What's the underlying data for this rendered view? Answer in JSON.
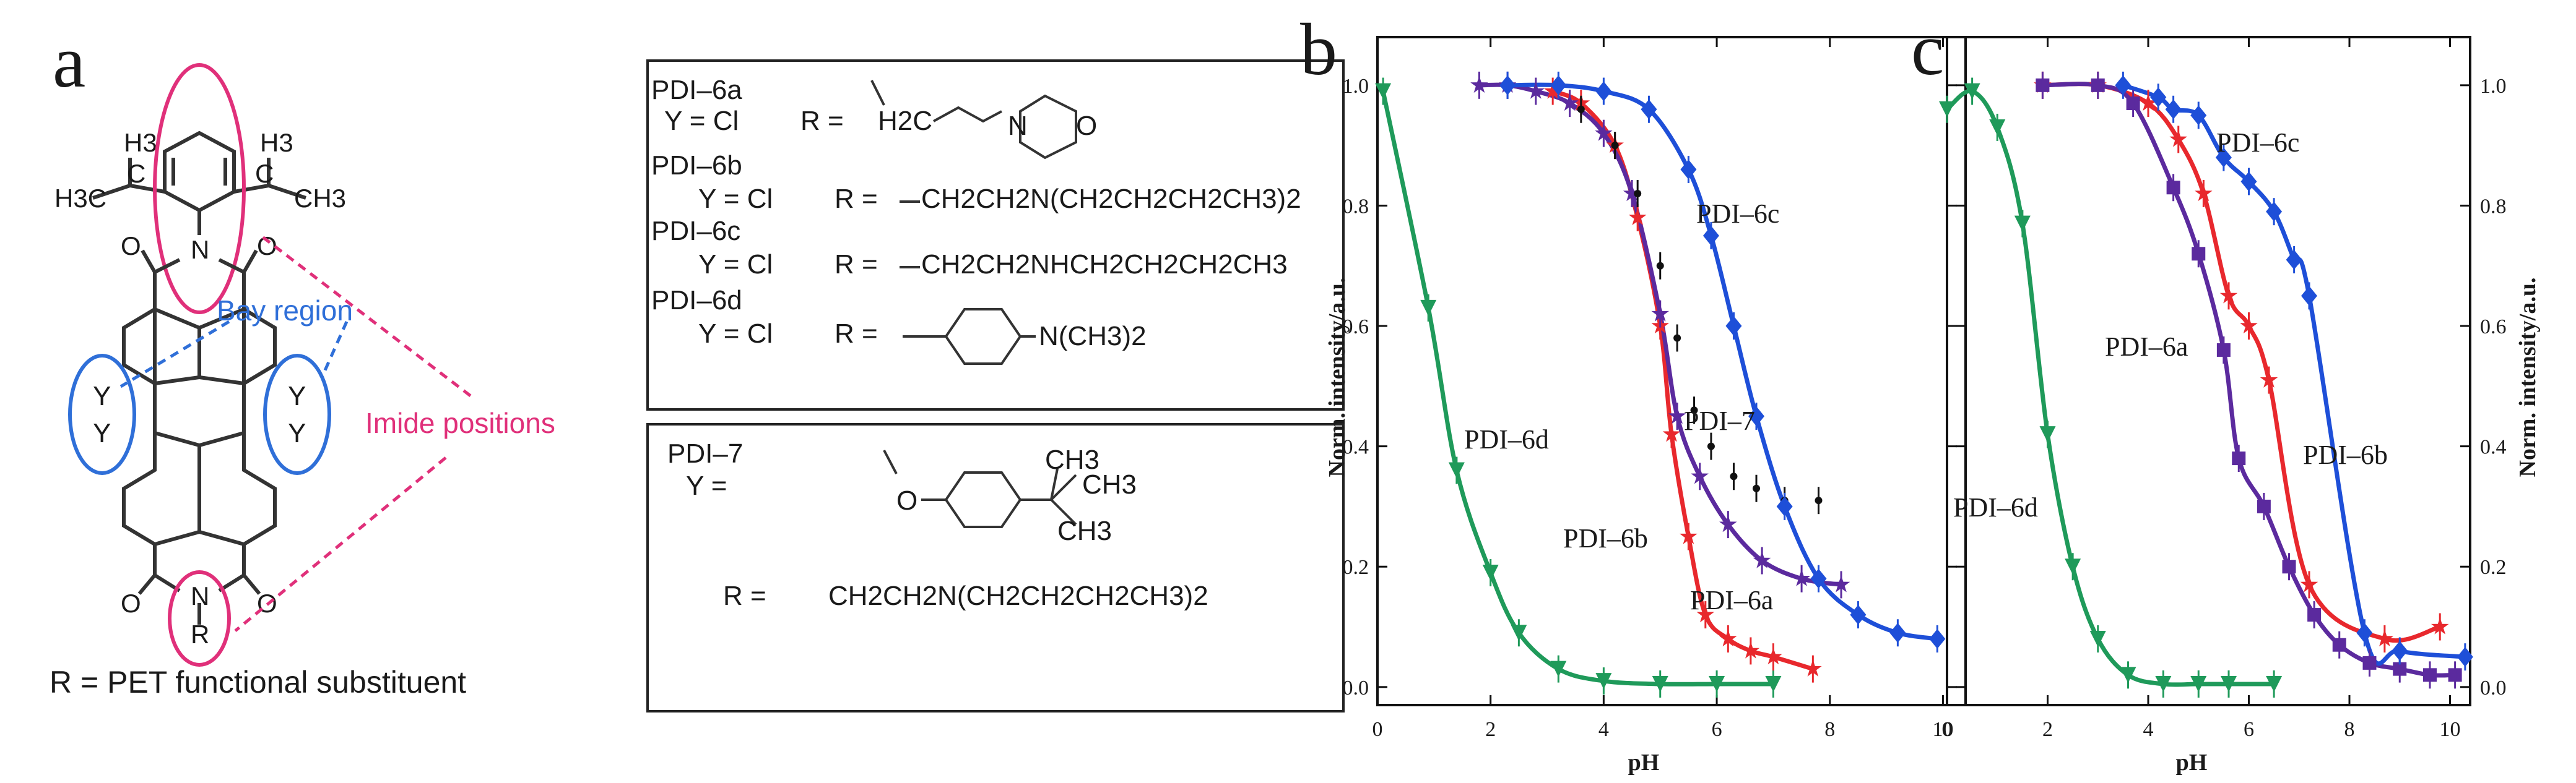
{
  "panel_a": {
    "letter": "a",
    "h3_left": "H3",
    "h3_right": "H3",
    "methyl_left": "H3C",
    "methyl_right": "CH3",
    "c_left": "C",
    "c_right": "C",
    "imide_n_top": "N",
    "imide_n_bottom": "N",
    "r_group": "R",
    "oxygen": "O",
    "bay_y": "Y",
    "bay_region_label": "Bay region",
    "imide_positions_label": "Imide positions",
    "caption": "R = PET functional substituent",
    "colors": {
      "pink": "#e0307a",
      "blue": "#2f6fd8",
      "ink": "#333333"
    }
  },
  "substituents": {
    "entries": [
      {
        "name": "PDI–6a",
        "y": "Y = Cl",
        "r_prefix": "R =",
        "r_group": "H2C—CH2—N(morpholine)"
      },
      {
        "name": "PDI–6b",
        "y": "Y = Cl",
        "r_prefix": "R =",
        "r_group": "CH2CH2N(CH2CH2CH2CH3)2"
      },
      {
        "name": "PDI–6c",
        "y": "Y = Cl",
        "r_prefix": "R =",
        "r_group": "CH2CH2NHCH2CH2CH2CH3"
      },
      {
        "name": "PDI–6d",
        "y": "Y = Cl",
        "r_prefix": "R =",
        "r_group": "N(CH3)2"
      }
    ],
    "morph_h2c": "H2C",
    "morph_n": "N",
    "morph_o": "O"
  },
  "pdi7": {
    "name": "PDI–7",
    "y_prefix": "Y =",
    "o_atom": "O",
    "ch3_a": "CH3",
    "ch3_b": "CH3",
    "ch3_c": "CH3",
    "r_prefix": "R =",
    "r_group": "CH2CH2N(CH2CH2CH2CH3)2"
  },
  "chart_data": [
    {
      "panel": "b",
      "type": "line",
      "xlabel": "pH",
      "ylabel": "Norm. intensity/a.u.",
      "xlim": [
        0,
        10.4
      ],
      "ylim": [
        -0.03,
        1.08
      ],
      "xticks": [
        "0",
        "2",
        "4",
        "6",
        "8",
        "10"
      ],
      "yticks": [
        "0.0",
        "0.2",
        "0.4",
        "0.6",
        "0.8",
        "1.0"
      ],
      "yticks_values": [
        0,
        0.2,
        0.4,
        0.6,
        0.8,
        1.0
      ],
      "xticks_values": [
        0,
        2,
        4,
        6,
        8,
        10
      ],
      "series": [
        {
          "name": "PDI–6d",
          "color": "#1f9a5a",
          "marker": "triangle-down",
          "x": [
            0.1,
            0.9,
            1.4,
            2.0,
            2.5,
            3.2,
            4.0,
            5.0,
            6.0,
            7.0
          ],
          "y": [
            0.99,
            0.63,
            0.36,
            0.19,
            0.09,
            0.03,
            0.01,
            0.005,
            0.005,
            0.005
          ]
        },
        {
          "name": "PDI–6b",
          "color": "#e8282d",
          "marker": "star",
          "x": [
            3.1,
            3.6,
            4.2,
            4.6,
            5.0,
            5.2,
            5.5,
            5.8,
            6.2,
            6.6,
            7.0,
            7.7
          ],
          "y": [
            0.99,
            0.97,
            0.9,
            0.78,
            0.6,
            0.42,
            0.25,
            0.12,
            0.08,
            0.06,
            0.05,
            0.03
          ]
        },
        {
          "name": "PDI–6a",
          "color": "#5b2a9e",
          "marker": "star",
          "x": [
            1.8,
            2.3,
            2.8,
            3.4,
            4.0,
            4.5,
            5.0,
            5.3,
            5.7,
            6.2,
            6.8,
            7.5,
            8.2
          ],
          "y": [
            1.0,
            1.0,
            0.99,
            0.97,
            0.92,
            0.82,
            0.62,
            0.45,
            0.35,
            0.27,
            0.21,
            0.18,
            0.17
          ]
        },
        {
          "name": "PDI–7",
          "color": "#111111",
          "marker": "dot",
          "x": [
            3.6,
            4.2,
            4.6,
            5.0,
            5.3,
            5.6,
            5.9,
            6.3,
            6.7,
            7.2,
            7.8
          ],
          "y": [
            0.96,
            0.9,
            0.82,
            0.7,
            0.58,
            0.46,
            0.4,
            0.35,
            0.33,
            0.31,
            0.31
          ]
        },
        {
          "name": "PDI–6c",
          "color": "#1e4fd8",
          "marker": "diamond",
          "x": [
            2.3,
            3.2,
            4.0,
            4.8,
            5.5,
            5.9,
            6.3,
            6.7,
            7.2,
            7.8,
            8.5,
            9.2,
            9.9
          ],
          "y": [
            1.0,
            1.0,
            0.99,
            0.96,
            0.86,
            0.75,
            0.6,
            0.45,
            0.3,
            0.18,
            0.12,
            0.09,
            0.08
          ]
        }
      ],
      "curve_labels": [
        "PDI–6d",
        "PDI–6b",
        "PDI–6a",
        "PDI–7",
        "PDI–6c"
      ]
    },
    {
      "panel": "c",
      "type": "line",
      "xlabel": "pH",
      "ylabel": "Norm. intensity/a.u.",
      "xlim": [
        0,
        10.4
      ],
      "ylim": [
        -0.03,
        1.08
      ],
      "xticks": [
        "0",
        "2",
        "4",
        "6",
        "8",
        "10"
      ],
      "yticks": [
        "0.0",
        "0.2",
        "0.4",
        "0.6",
        "0.8",
        "1.0"
      ],
      "yticks_values": [
        0,
        0.2,
        0.4,
        0.6,
        0.8,
        1.0
      ],
      "xticks_values": [
        0,
        2,
        4,
        6,
        8,
        10
      ],
      "series": [
        {
          "name": "PDI–6d",
          "color": "#1f9a5a",
          "marker": "triangle-down",
          "x": [
            0.0,
            0.5,
            1.0,
            1.5,
            2.0,
            2.5,
            3.0,
            3.6,
            4.3,
            5.0,
            5.6,
            6.5
          ],
          "y": [
            0.96,
            0.99,
            0.93,
            0.77,
            0.42,
            0.2,
            0.08,
            0.02,
            0.005,
            0.005,
            0.005,
            0.005
          ]
        },
        {
          "name": "PDI–6b",
          "color": "#e8282d",
          "marker": "star",
          "x": [
            1.9,
            3.0,
            4.0,
            4.6,
            5.1,
            5.6,
            6.0,
            6.4,
            7.2,
            8.7,
            9.8
          ],
          "y": [
            1.0,
            1.0,
            0.97,
            0.91,
            0.82,
            0.65,
            0.6,
            0.51,
            0.17,
            0.08,
            0.1
          ]
        },
        {
          "name": "PDI–6a",
          "color": "#5b2a9e",
          "marker": "square",
          "x": [
            1.9,
            3.0,
            3.7,
            4.5,
            5.0,
            5.5,
            5.8,
            6.3,
            6.8,
            7.3,
            7.8,
            8.4,
            9.0,
            9.6,
            10.1
          ],
          "y": [
            1.0,
            1.0,
            0.97,
            0.83,
            0.72,
            0.56,
            0.38,
            0.3,
            0.2,
            0.12,
            0.07,
            0.04,
            0.03,
            0.02,
            0.02
          ]
        },
        {
          "name": "PDI–6c",
          "color": "#1e4fd8",
          "marker": "diamond",
          "x": [
            3.5,
            4.2,
            4.5,
            5.0,
            5.5,
            6.0,
            6.5,
            6.9,
            7.2,
            8.3,
            9.0,
            10.3
          ],
          "y": [
            1.0,
            0.98,
            0.96,
            0.95,
            0.88,
            0.84,
            0.79,
            0.71,
            0.65,
            0.09,
            0.06,
            0.05
          ]
        }
      ],
      "curve_labels": [
        "PDI–6d",
        "PDI–6a",
        "PDI–6b",
        "PDI–6c"
      ]
    }
  ]
}
